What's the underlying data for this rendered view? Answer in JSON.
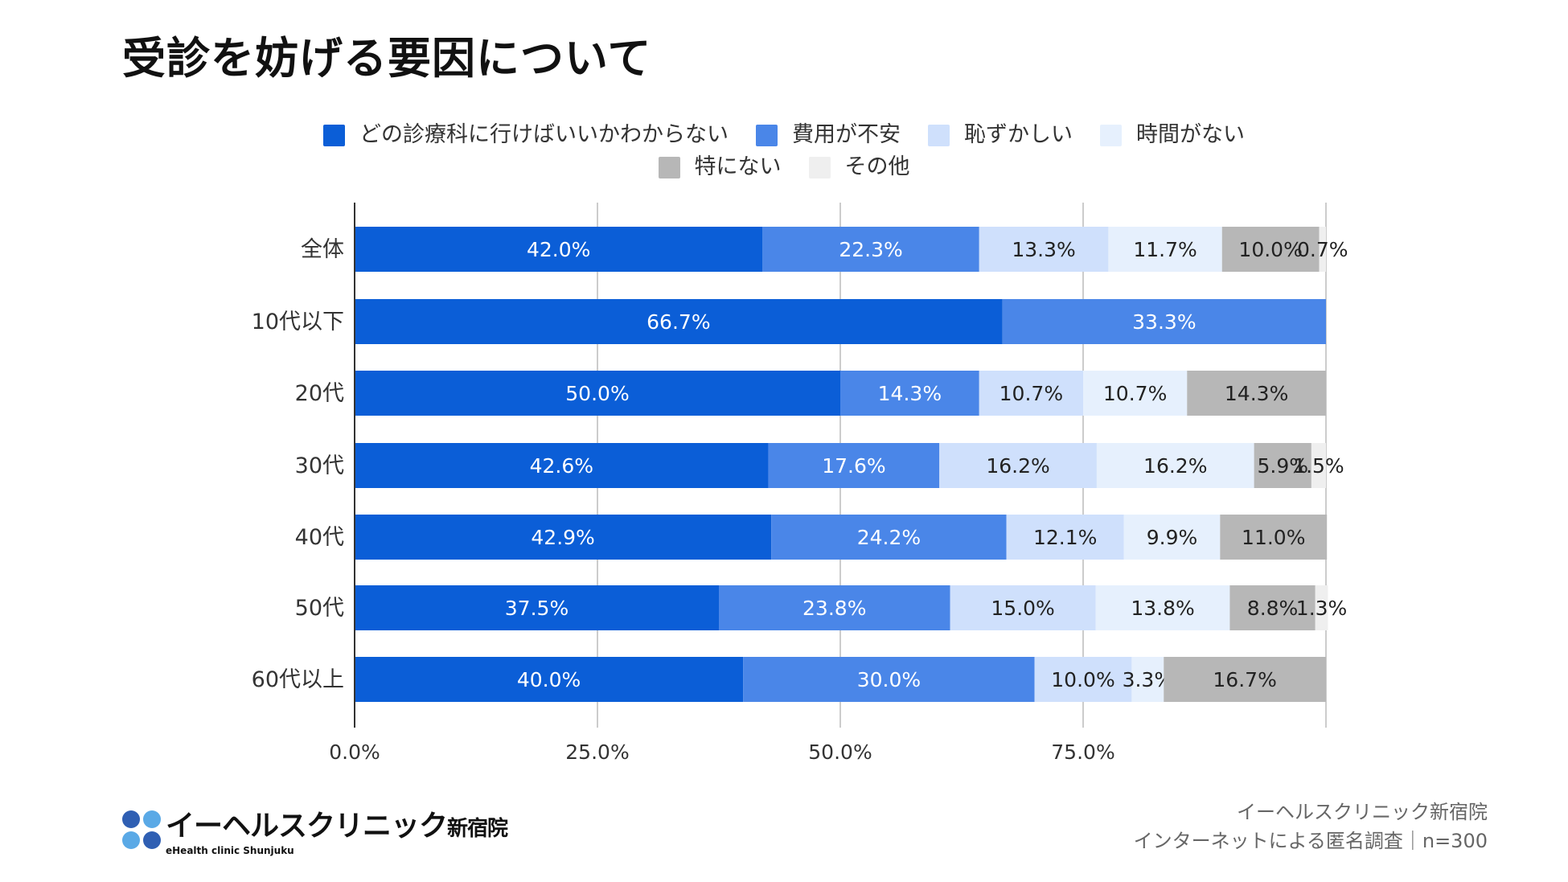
{
  "title": "受診を妨げる要因について",
  "chart_data": {
    "type": "bar",
    "orientation": "horizontal",
    "stacked": true,
    "categories": [
      "全体",
      "10代以下",
      "20代",
      "30代",
      "40代",
      "50代",
      "60代以上"
    ],
    "series": [
      {
        "name": "どの診療科に行けばいいかわからない",
        "color": "#0b5ed7",
        "values": [
          42.0,
          66.7,
          50.0,
          42.6,
          42.9,
          37.5,
          40.0
        ]
      },
      {
        "name": "費用が不安",
        "color": "#4a86e8",
        "values": [
          22.3,
          33.3,
          14.3,
          17.6,
          24.2,
          23.8,
          30.0
        ]
      },
      {
        "name": "恥ずかしい",
        "color": "#cfe0fc",
        "values": [
          13.3,
          0,
          10.7,
          16.2,
          12.1,
          15.0,
          10.0
        ]
      },
      {
        "name": "時間がない",
        "color": "#e6f0fd",
        "values": [
          11.7,
          0,
          10.7,
          16.2,
          9.9,
          13.8,
          3.3
        ]
      },
      {
        "name": "特にない",
        "color": "#b7b7b7",
        "values": [
          10.0,
          0,
          14.3,
          5.9,
          11.0,
          8.8,
          16.7
        ]
      },
      {
        "name": "その他",
        "color": "#efefef",
        "values": [
          0.7,
          0,
          0,
          1.5,
          0,
          1.3,
          0
        ]
      }
    ],
    "xlim": [
      0,
      100
    ],
    "x_ticks": [
      "0.0%",
      "25.0%",
      "50.0%",
      "75.0%"
    ],
    "x_tick_values": [
      0,
      25,
      50,
      75
    ],
    "grid": true,
    "legend_position": "top",
    "data_label_format": "one decimal with %"
  },
  "footer": {
    "logo_main": "イーヘルスクリニック",
    "logo_branch": "新宿院",
    "logo_sub": "eHealth clinic Shunjuku",
    "source_line1": "イーヘルスクリニック新宿院",
    "source_line2": "インターネットによる匿名調査｜n=300"
  }
}
